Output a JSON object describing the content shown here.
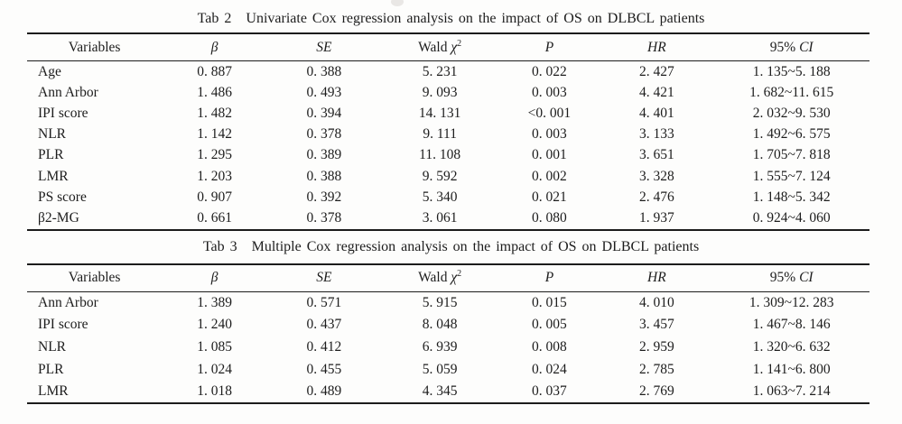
{
  "page": {
    "background": "#fdfdfc",
    "text_color": "#1d1d1d",
    "rule_color": "#1c1c1c"
  },
  "tables": [
    {
      "title_tag": "Tab 2",
      "title": "Univariate Cox regression analysis on the impact of OS on DLBCL patients",
      "columns": [
        {
          "plain": "Variables"
        },
        {
          "italic": "β"
        },
        {
          "italic": "SE"
        },
        {
          "plain": "Wald ",
          "italic": "χ",
          "sup": "2"
        },
        {
          "italic": "P"
        },
        {
          "italic": "HR"
        },
        {
          "plain": "95% ",
          "italic": "CI"
        }
      ],
      "rows": [
        [
          "Age",
          "0. 887",
          "0. 388",
          "5. 231",
          "0. 022",
          "2. 427",
          "1. 135~5. 188"
        ],
        [
          "Ann Arbor",
          "1. 486",
          "0. 493",
          "9. 093",
          "0. 003",
          "4. 421",
          "1. 682~11. 615"
        ],
        [
          "IPI score",
          "1. 482",
          "0. 394",
          "14. 131",
          "<0. 001",
          "4. 401",
          "2. 032~9. 530"
        ],
        [
          "NLR",
          "1. 142",
          "0. 378",
          "9. 111",
          "0. 003",
          "3. 133",
          "1. 492~6. 575"
        ],
        [
          "PLR",
          "1. 295",
          "0. 389",
          "11. 108",
          "0. 001",
          "3. 651",
          "1. 705~7. 818"
        ],
        [
          "LMR",
          "1. 203",
          "0. 388",
          "9. 592",
          "0. 002",
          "3. 328",
          "1. 555~7. 124"
        ],
        [
          "PS score",
          "0. 907",
          "0. 392",
          "5. 340",
          "0. 021",
          "2. 476",
          "1. 148~5. 342"
        ],
        [
          "β2-MG",
          "0. 661",
          "0. 378",
          "3. 061",
          "0. 080",
          "1. 937",
          "0. 924~4. 060"
        ]
      ]
    },
    {
      "title_tag": "Tab 3",
      "title": "Multiple Cox regression analysis on the impact of OS on DLBCL patients",
      "columns": [
        {
          "plain": "Variables"
        },
        {
          "italic": "β"
        },
        {
          "italic": "SE"
        },
        {
          "plain": "Wald ",
          "italic": "χ",
          "sup": "2"
        },
        {
          "italic": "P"
        },
        {
          "italic": "HR"
        },
        {
          "plain": "95% ",
          "italic": "CI"
        }
      ],
      "rows": [
        [
          "Ann Arbor",
          "1. 389",
          "0. 571",
          "5. 915",
          "0. 015",
          "4. 010",
          "1. 309~12. 283"
        ],
        [
          "IPI score",
          "1. 240",
          "0. 437",
          "8. 048",
          "0. 005",
          "3. 457",
          "1. 467~8. 146"
        ],
        [
          "NLR",
          "1. 085",
          "0. 412",
          "6. 939",
          "0. 008",
          "2. 959",
          "1. 320~6. 632"
        ],
        [
          "PLR",
          "1. 024",
          "0. 455",
          "5. 059",
          "0. 024",
          "2. 785",
          "1. 141~6. 800"
        ],
        [
          "LMR",
          "1. 018",
          "0. 489",
          "4. 345",
          "0. 037",
          "2. 769",
          "1. 063~7. 214"
        ]
      ]
    }
  ]
}
